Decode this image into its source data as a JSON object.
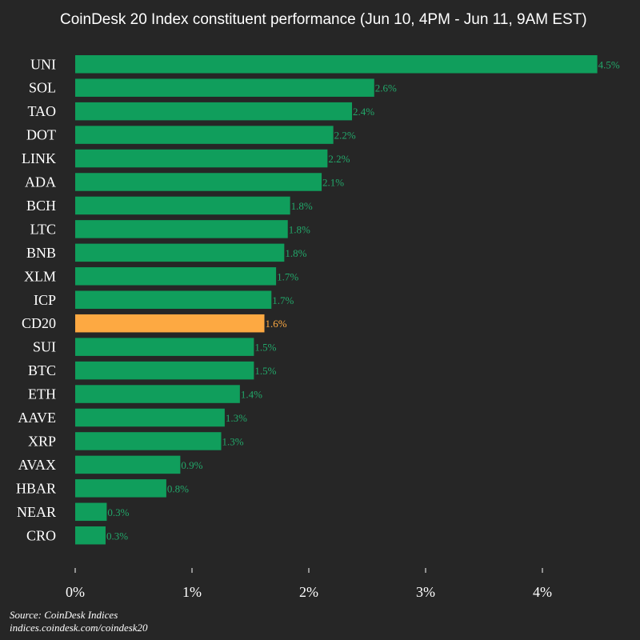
{
  "chart_data": {
    "type": "bar",
    "orientation": "horizontal",
    "title": "CoinDesk 20 Index constituent performance (Jun 10, 4PM - Jun 11, 9AM EST)",
    "categories": [
      "UNI",
      "SOL",
      "TAO",
      "DOT",
      "LINK",
      "ADA",
      "BCH",
      "LTC",
      "BNB",
      "XLM",
      "ICP",
      "CD20",
      "SUI",
      "BTC",
      "ETH",
      "AAVE",
      "XRP",
      "AVAX",
      "HBAR",
      "NEAR",
      "CRO"
    ],
    "values": [
      4.47,
      2.56,
      2.37,
      2.21,
      2.16,
      2.11,
      1.84,
      1.82,
      1.79,
      1.72,
      1.68,
      1.62,
      1.53,
      1.53,
      1.41,
      1.28,
      1.25,
      0.9,
      0.78,
      0.27,
      0.26
    ],
    "data_labels": [
      "4.5%",
      "2.6%",
      "2.4%",
      "2.2%",
      "2.2%",
      "2.1%",
      "1.8%",
      "1.8%",
      "1.8%",
      "1.7%",
      "1.7%",
      "1.6%",
      "1.5%",
      "1.5%",
      "1.4%",
      "1.3%",
      "1.3%",
      "0.9%",
      "0.8%",
      "0.3%",
      "0.3%"
    ],
    "highlight_category": "CD20",
    "xlim": [
      0,
      4.5
    ],
    "x_ticks": [
      0,
      1,
      2,
      3,
      4
    ],
    "x_tick_labels": [
      "0%",
      "1%",
      "2%",
      "3%",
      "4%"
    ],
    "xlabel": "",
    "ylabel": "",
    "grid": false,
    "legend": "none"
  },
  "colors": {
    "background": "#262626",
    "bar": "#109e5c",
    "bar_highlight": "#fda942",
    "label": "#22a86a",
    "label_highlight": "#fda942",
    "text": "#ffffff"
  },
  "source": {
    "line1": "Source: CoinDesk Indices",
    "line2": "indices.coindesk.com/coindesk20"
  }
}
